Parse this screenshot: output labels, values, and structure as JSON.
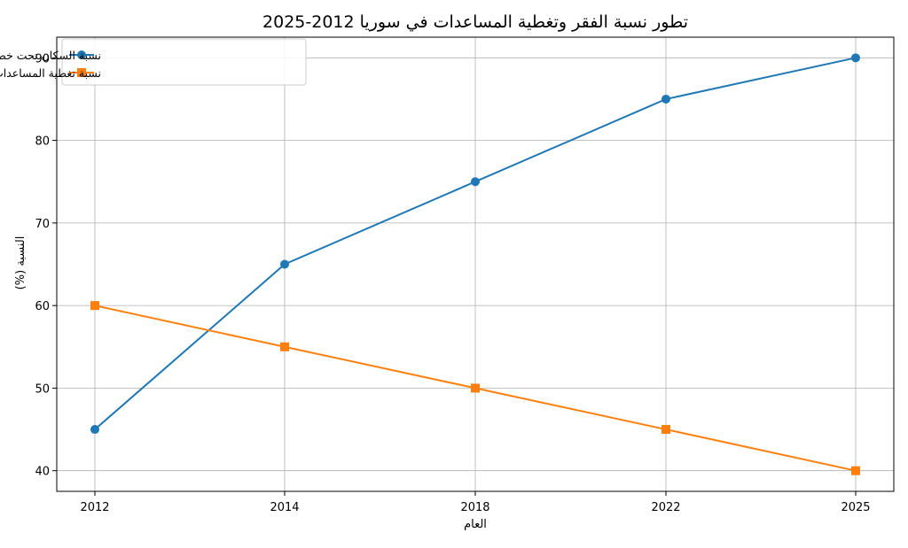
{
  "chart_data": {
    "type": "line",
    "title": "تطور نسبة الفقر وتغطية المساعدات في سوريا 2012-2025",
    "xlabel": "العام",
    "ylabel": "النسبة (%)",
    "categories": [
      "2012",
      "2014",
      "2018",
      "2022",
      "2025"
    ],
    "yticks": [
      40,
      50,
      60,
      70,
      80,
      90
    ],
    "ylim": [
      37.5,
      92.5
    ],
    "grid": true,
    "legend_position": "top-left",
    "series": [
      {
        "name": "نسبة السكان تحت خط الفقر (%)",
        "values": [
          45,
          65,
          75,
          85,
          90
        ],
        "color": "#1f77b4",
        "marker": "circle"
      },
      {
        "name": "نسبة تغطية المساعدات الإنسانية (%)",
        "values": [
          60,
          55,
          50,
          45,
          40
        ],
        "color": "#ff7f0e",
        "marker": "square"
      }
    ]
  }
}
